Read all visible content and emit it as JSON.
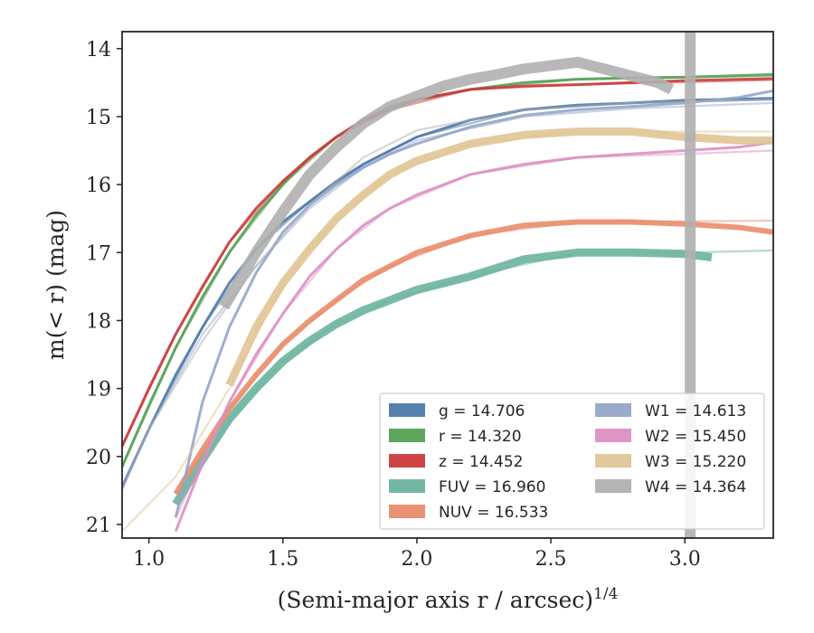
{
  "chart_data": {
    "type": "line",
    "xlabel": "(Semi-major axis r / arcsec)",
    "xlabel_sup": "1/4",
    "ylabel": "m(< r) (mag)",
    "xlim": [
      0.9,
      3.33
    ],
    "ylim": [
      21.2,
      13.75
    ],
    "y_inverted": true,
    "grid": false,
    "legend_position": "lower-right",
    "x_ticks": [
      {
        "value": 1.0,
        "label": "1.0"
      },
      {
        "value": 1.5,
        "label": "1.5"
      },
      {
        "value": 2.0,
        "label": "2.0"
      },
      {
        "value": 2.5,
        "label": "2.5"
      },
      {
        "value": 3.0,
        "label": "3.0"
      }
    ],
    "y_ticks": [
      {
        "value": 14,
        "label": "14"
      },
      {
        "value": 15,
        "label": "15"
      },
      {
        "value": 16,
        "label": "16"
      },
      {
        "value": 17,
        "label": "17"
      },
      {
        "value": 18,
        "label": "18"
      },
      {
        "value": 19,
        "label": "19"
      },
      {
        "value": 20,
        "label": "20"
      },
      {
        "value": 21,
        "label": "21"
      }
    ],
    "series": [
      {
        "name": "g",
        "label": "g = 14.706",
        "color": "#4c7aa8",
        "data": [
          [
            0.9,
            20.45
          ],
          [
            1.0,
            19.6
          ],
          [
            1.1,
            18.8
          ],
          [
            1.2,
            18.1
          ],
          [
            1.3,
            17.45
          ],
          [
            1.4,
            16.95
          ],
          [
            1.5,
            16.55
          ],
          [
            1.6,
            16.25
          ],
          [
            1.7,
            15.95
          ],
          [
            1.8,
            15.7
          ],
          [
            1.9,
            15.5
          ],
          [
            2.0,
            15.3
          ],
          [
            2.2,
            15.05
          ],
          [
            2.4,
            14.9
          ],
          [
            2.6,
            14.83
          ],
          [
            2.8,
            14.8
          ],
          [
            3.0,
            14.76
          ],
          [
            3.33,
            14.73
          ]
        ],
        "model": [
          [
            0.9,
            20.45
          ],
          [
            1.0,
            19.6
          ],
          [
            1.2,
            18.1
          ],
          [
            1.4,
            16.95
          ],
          [
            1.6,
            16.25
          ],
          [
            1.8,
            15.7
          ],
          [
            2.0,
            15.3
          ],
          [
            2.4,
            14.9
          ],
          [
            2.8,
            14.8
          ],
          [
            3.33,
            14.75
          ]
        ]
      },
      {
        "name": "r",
        "label": "r = 14.320",
        "color": "#55a055",
        "data": [
          [
            0.9,
            20.15
          ],
          [
            1.0,
            19.25
          ],
          [
            1.1,
            18.4
          ],
          [
            1.2,
            17.65
          ],
          [
            1.3,
            17.0
          ],
          [
            1.4,
            16.45
          ],
          [
            1.5,
            16.0
          ],
          [
            1.6,
            15.6
          ],
          [
            1.7,
            15.3
          ],
          [
            1.8,
            15.05
          ],
          [
            1.9,
            14.85
          ],
          [
            2.0,
            14.75
          ],
          [
            2.2,
            14.6
          ],
          [
            2.4,
            14.5
          ],
          [
            2.6,
            14.45
          ],
          [
            2.8,
            14.43
          ],
          [
            3.0,
            14.42
          ],
          [
            3.33,
            14.38
          ]
        ],
        "model": [
          [
            0.9,
            20.15
          ],
          [
            1.1,
            18.4
          ],
          [
            1.3,
            17.0
          ],
          [
            1.5,
            16.0
          ],
          [
            1.7,
            15.3
          ],
          [
            1.9,
            14.85
          ],
          [
            2.2,
            14.6
          ],
          [
            2.6,
            14.45
          ],
          [
            3.33,
            14.4
          ]
        ]
      },
      {
        "name": "z",
        "label": "z = 14.452",
        "color": "#cc3b3b",
        "data": [
          [
            0.9,
            19.85
          ],
          [
            1.0,
            19.0
          ],
          [
            1.1,
            18.2
          ],
          [
            1.2,
            17.5
          ],
          [
            1.3,
            16.85
          ],
          [
            1.4,
            16.35
          ],
          [
            1.5,
            15.95
          ],
          [
            1.6,
            15.6
          ],
          [
            1.7,
            15.3
          ],
          [
            1.8,
            15.05
          ],
          [
            1.9,
            14.9
          ],
          [
            2.0,
            14.75
          ],
          [
            2.2,
            14.6
          ],
          [
            2.4,
            14.55
          ],
          [
            2.6,
            14.53
          ],
          [
            2.8,
            14.5
          ],
          [
            3.0,
            14.47
          ],
          [
            3.33,
            14.44
          ]
        ],
        "model": [
          [
            0.9,
            19.85
          ],
          [
            1.1,
            18.2
          ],
          [
            1.3,
            16.85
          ],
          [
            1.5,
            15.95
          ],
          [
            1.7,
            15.3
          ],
          [
            1.9,
            14.9
          ],
          [
            2.2,
            14.6
          ],
          [
            2.6,
            14.53
          ],
          [
            3.33,
            14.46
          ]
        ]
      },
      {
        "name": "FUV",
        "label": "FUV = 16.960",
        "color": "#6cb3a0",
        "data": [
          [
            1.1,
            20.7
          ],
          [
            1.2,
            20.05
          ],
          [
            1.3,
            19.45
          ],
          [
            1.4,
            19.0
          ],
          [
            1.5,
            18.6
          ],
          [
            1.6,
            18.3
          ],
          [
            1.7,
            18.05
          ],
          [
            1.8,
            17.85
          ],
          [
            1.9,
            17.7
          ],
          [
            2.0,
            17.55
          ],
          [
            2.2,
            17.35
          ],
          [
            2.4,
            17.1
          ],
          [
            2.6,
            17.0
          ],
          [
            2.8,
            17.0
          ],
          [
            3.0,
            17.02
          ],
          [
            3.1,
            17.07
          ]
        ],
        "model": [
          [
            1.1,
            20.7
          ],
          [
            1.3,
            19.45
          ],
          [
            1.5,
            18.6
          ],
          [
            1.7,
            18.05
          ],
          [
            1.9,
            17.7
          ],
          [
            2.2,
            17.35
          ],
          [
            2.6,
            17.0
          ],
          [
            3.0,
            17.0
          ],
          [
            3.33,
            16.97
          ]
        ]
      },
      {
        "name": "NUV",
        "label": "NUV = 16.533",
        "color": "#e98d6b",
        "data": [
          [
            1.1,
            20.55
          ],
          [
            1.2,
            19.9
          ],
          [
            1.3,
            19.3
          ],
          [
            1.4,
            18.8
          ],
          [
            1.5,
            18.35
          ],
          [
            1.6,
            18.0
          ],
          [
            1.7,
            17.7
          ],
          [
            1.8,
            17.4
          ],
          [
            1.9,
            17.2
          ],
          [
            2.0,
            17.0
          ],
          [
            2.2,
            16.75
          ],
          [
            2.4,
            16.6
          ],
          [
            2.6,
            16.55
          ],
          [
            2.8,
            16.55
          ],
          [
            3.0,
            16.58
          ],
          [
            3.2,
            16.63
          ],
          [
            3.33,
            16.7
          ]
        ],
        "model": [
          [
            1.1,
            20.55
          ],
          [
            1.3,
            19.3
          ],
          [
            1.5,
            18.35
          ],
          [
            1.7,
            17.7
          ],
          [
            1.9,
            17.2
          ],
          [
            2.2,
            16.75
          ],
          [
            2.6,
            16.55
          ],
          [
            3.0,
            16.54
          ],
          [
            3.33,
            16.53
          ]
        ]
      },
      {
        "name": "W1",
        "label": "W1 = 14.613",
        "color": "#94a5c8",
        "data": [
          [
            1.1,
            20.9
          ],
          [
            1.2,
            19.2
          ],
          [
            1.3,
            18.1
          ],
          [
            1.4,
            17.3
          ],
          [
            1.5,
            16.7
          ],
          [
            1.6,
            16.3
          ],
          [
            1.7,
            16.0
          ],
          [
            1.8,
            15.75
          ],
          [
            1.9,
            15.55
          ],
          [
            2.0,
            15.4
          ],
          [
            2.2,
            15.15
          ],
          [
            2.4,
            14.98
          ],
          [
            2.6,
            14.9
          ],
          [
            2.8,
            14.85
          ],
          [
            3.0,
            14.8
          ],
          [
            3.2,
            14.72
          ],
          [
            3.33,
            14.62
          ]
        ],
        "model": [
          [
            0.9,
            20.45
          ],
          [
            1.0,
            19.6
          ],
          [
            1.2,
            18.2
          ],
          [
            1.4,
            17.2
          ],
          [
            1.6,
            16.35
          ],
          [
            1.8,
            15.75
          ],
          [
            2.0,
            15.35
          ],
          [
            2.4,
            15.0
          ],
          [
            2.8,
            14.88
          ],
          [
            3.33,
            14.8
          ]
        ]
      },
      {
        "name": "W2",
        "label": "W2 = 15.450",
        "color": "#dd8fc3",
        "data": [
          [
            1.1,
            21.1
          ],
          [
            1.2,
            20.1
          ],
          [
            1.3,
            19.2
          ],
          [
            1.4,
            18.5
          ],
          [
            1.5,
            17.9
          ],
          [
            1.6,
            17.35
          ],
          [
            1.7,
            16.95
          ],
          [
            1.8,
            16.6
          ],
          [
            1.9,
            16.35
          ],
          [
            2.0,
            16.15
          ],
          [
            2.2,
            15.85
          ],
          [
            2.4,
            15.7
          ],
          [
            2.6,
            15.6
          ],
          [
            2.8,
            15.55
          ],
          [
            3.0,
            15.5
          ],
          [
            3.2,
            15.45
          ],
          [
            3.33,
            15.38
          ]
        ],
        "model": [
          [
            1.1,
            20.9
          ],
          [
            1.3,
            19.2
          ],
          [
            1.5,
            17.9
          ],
          [
            1.7,
            16.95
          ],
          [
            1.9,
            16.35
          ],
          [
            2.2,
            15.85
          ],
          [
            2.6,
            15.6
          ],
          [
            3.0,
            15.55
          ],
          [
            3.33,
            15.5
          ]
        ]
      },
      {
        "name": "W3",
        "label": "W3 = 15.220",
        "color": "#e0c595",
        "data": [
          [
            1.3,
            18.95
          ],
          [
            1.4,
            18.1
          ],
          [
            1.5,
            17.45
          ],
          [
            1.6,
            16.95
          ],
          [
            1.7,
            16.5
          ],
          [
            1.8,
            16.15
          ],
          [
            1.9,
            15.85
          ],
          [
            2.0,
            15.65
          ],
          [
            2.2,
            15.4
          ],
          [
            2.4,
            15.27
          ],
          [
            2.6,
            15.22
          ],
          [
            2.8,
            15.22
          ],
          [
            3.0,
            15.3
          ],
          [
            3.2,
            15.35
          ],
          [
            3.33,
            15.35
          ]
        ],
        "model": [
          [
            0.9,
            21.1
          ],
          [
            1.1,
            20.3
          ],
          [
            1.3,
            19.0
          ],
          [
            1.5,
            17.45
          ],
          [
            1.7,
            16.5
          ],
          [
            1.9,
            15.85
          ],
          [
            2.2,
            15.4
          ],
          [
            2.6,
            15.22
          ],
          [
            3.33,
            15.22
          ]
        ]
      },
      {
        "name": "W4",
        "label": "W4 = 14.364",
        "color": "#b0b0b0",
        "data": [
          [
            1.28,
            17.8
          ],
          [
            1.4,
            17.0
          ],
          [
            1.5,
            16.4
          ],
          [
            1.6,
            15.85
          ],
          [
            1.7,
            15.45
          ],
          [
            1.8,
            15.1
          ],
          [
            1.9,
            14.85
          ],
          [
            2.0,
            14.7
          ],
          [
            2.1,
            14.55
          ],
          [
            2.2,
            14.45
          ],
          [
            2.3,
            14.38
          ],
          [
            2.4,
            14.3
          ],
          [
            2.5,
            14.25
          ],
          [
            2.6,
            14.2
          ],
          [
            2.7,
            14.3
          ],
          [
            2.8,
            14.4
          ],
          [
            2.9,
            14.5
          ],
          [
            2.95,
            14.6
          ]
        ],
        "model": [
          [
            0.9,
            20.5
          ],
          [
            1.0,
            19.6
          ],
          [
            1.2,
            18.3
          ],
          [
            1.4,
            17.2
          ],
          [
            1.6,
            16.3
          ],
          [
            1.8,
            15.6
          ],
          [
            2.0,
            15.2
          ],
          [
            2.4,
            14.9
          ],
          [
            2.8,
            14.8
          ],
          [
            3.33,
            14.75
          ]
        ]
      }
    ]
  }
}
